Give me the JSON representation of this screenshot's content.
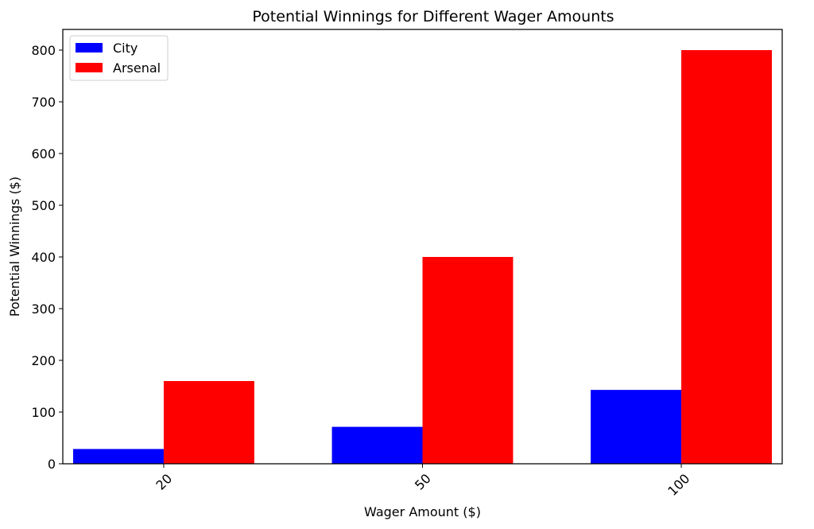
{
  "chart_data": {
    "type": "bar",
    "title": "Potential Winnings for Different Wager Amounts",
    "xlabel": "Wager Amount ($)",
    "ylabel": "Potential Winnings ($)",
    "categories": [
      "20",
      "50",
      "100"
    ],
    "series": [
      {
        "name": "City",
        "values": [
          28.57,
          71.43,
          142.86
        ],
        "color": "#0000ff"
      },
      {
        "name": "Arsenal",
        "values": [
          160,
          400,
          800
        ],
        "color": "#ff0000"
      }
    ],
    "ylim": [
      0,
      840
    ],
    "yticks": [
      0,
      100,
      200,
      300,
      400,
      500,
      600,
      700,
      800
    ],
    "xtick_rotation": 45,
    "legend_position": "upper left",
    "grid": false
  }
}
